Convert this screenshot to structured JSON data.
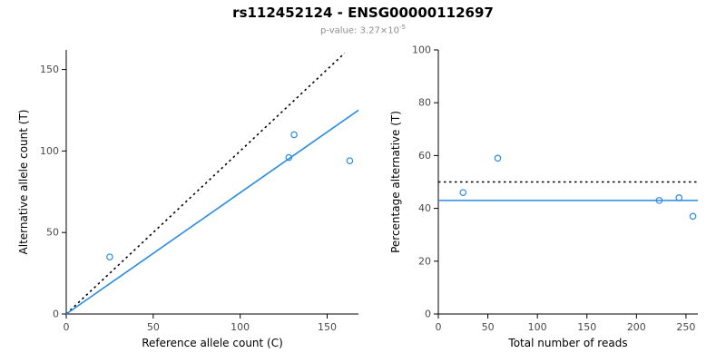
{
  "header": {
    "title": "rs112452124 - ENSG00000112697",
    "pvalue_label": "p-value: 3.27×10",
    "pvalue_exponent": "-5"
  },
  "chart_data": [
    {
      "type": "scatter",
      "xlabel": "Reference allele count (C)",
      "ylabel": "Alternative allele count (T)",
      "xlim": [
        0,
        168
      ],
      "ylim": [
        0,
        162
      ],
      "xticks": [
        0,
        50,
        100,
        150
      ],
      "yticks": [
        0,
        50,
        100,
        150
      ],
      "grid": false,
      "point_color": "#2b8ce0",
      "points": [
        [
          25,
          35
        ],
        [
          128,
          96
        ],
        [
          131,
          110
        ],
        [
          163,
          94
        ]
      ],
      "lines": [
        {
          "name": "identity-line",
          "style": "dotted",
          "color": "#000000",
          "from": [
            0,
            0
          ],
          "to": [
            160,
            160
          ]
        },
        {
          "name": "regression-line",
          "style": "solid",
          "color": "#2b8ce0",
          "from": [
            0,
            0
          ],
          "to": [
            168,
            125
          ]
        }
      ]
    },
    {
      "type": "scatter",
      "xlabel": "Total number of reads",
      "ylabel": "Percentage alternative (T)",
      "xlim": [
        0,
        262
      ],
      "ylim": [
        0,
        100
      ],
      "xticks": [
        0,
        50,
        100,
        150,
        200,
        250
      ],
      "yticks": [
        0,
        20,
        40,
        60,
        80,
        100
      ],
      "grid": false,
      "point_color": "#2b8ce0",
      "points": [
        [
          25,
          46
        ],
        [
          60,
          59
        ],
        [
          223,
          43
        ],
        [
          243,
          44
        ],
        [
          257,
          37
        ]
      ],
      "lines": [
        {
          "name": "expected-50pct-line",
          "style": "dotted",
          "color": "#000000",
          "from": [
            0,
            50
          ],
          "to": [
            262,
            50
          ]
        },
        {
          "name": "mean-percentage-line",
          "style": "solid",
          "color": "#2b8ce0",
          "from": [
            0,
            43
          ],
          "to": [
            262,
            43
          ]
        }
      ]
    }
  ]
}
